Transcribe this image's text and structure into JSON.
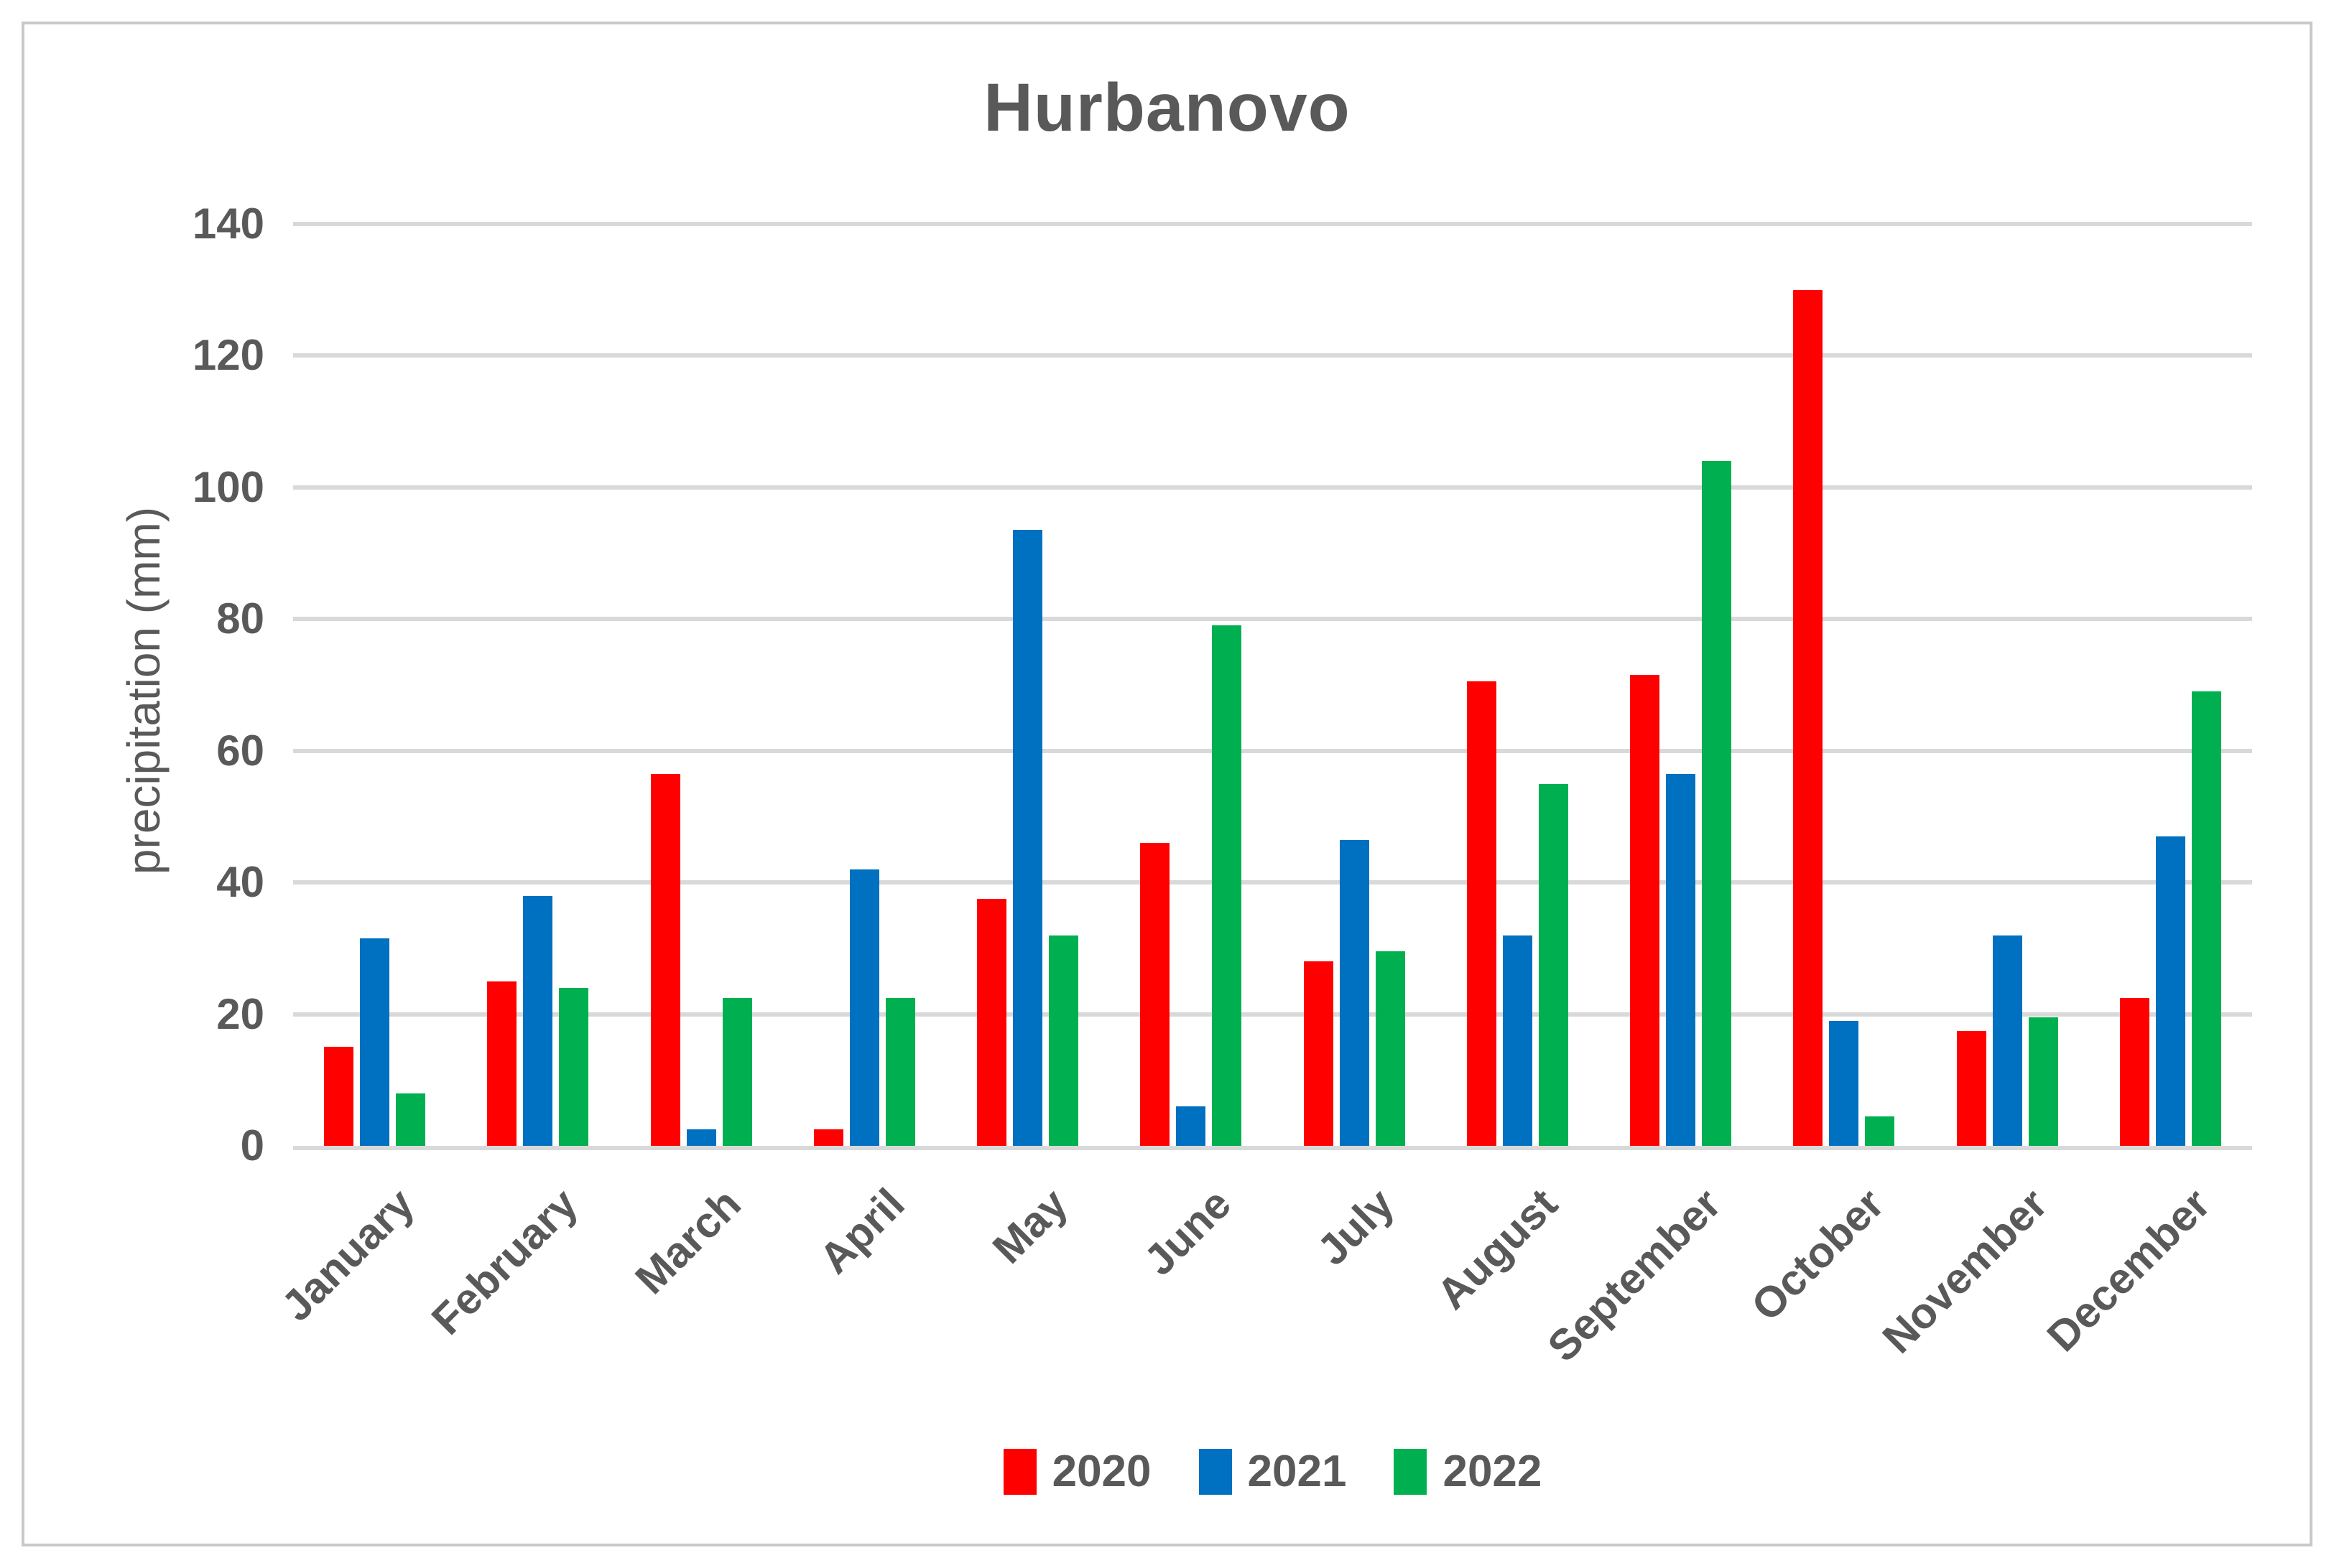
{
  "title": "Hurbanovo",
  "y_axis": {
    "title": "precipitation (mm)",
    "tick_labels": [
      "0",
      "20",
      "40",
      "60",
      "80",
      "100",
      "120",
      "140"
    ],
    "max": 140
  },
  "legend": [
    {
      "label": "2020",
      "color": "#FF0000"
    },
    {
      "label": "2021",
      "color": "#0070C0"
    },
    {
      "label": "2022",
      "color": "#00B050"
    }
  ],
  "colors": {
    "text_gray": "#595959",
    "gridline_gray": "#D9D9D9",
    "border_gray": "#C9C9C9",
    "series_2020": "#FF0000",
    "series_2021": "#0070C0",
    "series_2022": "#00B050"
  },
  "chart_data": {
    "type": "bar",
    "title": "Hurbanovo",
    "categories": [
      "January",
      "February",
      "March",
      "April",
      "May",
      "June",
      "July",
      "August",
      "September",
      "October",
      "November",
      "December"
    ],
    "series": [
      {
        "name": "2020",
        "color": "#FF0000",
        "values": [
          15,
          25,
          56.5,
          2.5,
          37.5,
          46,
          28,
          70.5,
          71.5,
          130,
          17.5,
          22.5
        ]
      },
      {
        "name": "2021",
        "color": "#0070C0",
        "values": [
          31.5,
          38,
          2.5,
          42,
          93.5,
          6,
          46.5,
          32,
          56.5,
          19,
          32,
          47
        ]
      },
      {
        "name": "2022",
        "color": "#00B050",
        "values": [
          8,
          24,
          22.5,
          22.5,
          32,
          79,
          29.5,
          55,
          104,
          4.5,
          19.5,
          69
        ]
      }
    ],
    "xlabel": "",
    "ylabel": "precipitation (mm)",
    "ylim": [
      0,
      140
    ],
    "ytick_step": 20,
    "grid": true,
    "legend_position": "bottom"
  }
}
